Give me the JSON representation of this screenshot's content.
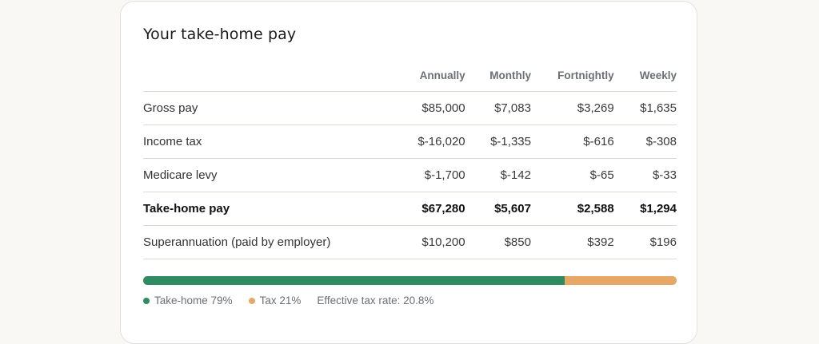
{
  "card": {
    "title": "Your take-home pay"
  },
  "table": {
    "columns": [
      "",
      "Annually",
      "Monthly",
      "Fortnightly",
      "Weekly"
    ],
    "rows": [
      {
        "label": "Gross pay",
        "values": [
          "$85,000",
          "$7,083",
          "$3,269",
          "$1,635"
        ],
        "bold": false
      },
      {
        "label": "Income tax",
        "values": [
          "$-16,020",
          "$-1,335",
          "$-616",
          "$-308"
        ],
        "bold": false
      },
      {
        "label": "Medicare levy",
        "values": [
          "$-1,700",
          "$-142",
          "$-65",
          "$-33"
        ],
        "bold": false
      },
      {
        "label": "Take-home pay",
        "values": [
          "$67,280",
          "$5,607",
          "$2,588",
          "$1,294"
        ],
        "bold": true
      },
      {
        "label": "Superannuation (paid by employer)",
        "values": [
          "$10,200",
          "$850",
          "$392",
          "$196"
        ],
        "bold": false
      }
    ]
  },
  "breakdown": {
    "takehome_fraction": 0.79,
    "takehome_color": "#2e8b62",
    "tax_color": "#e6a864",
    "legend": {
      "takehome": "Take-home 79%",
      "tax": "Tax 21%",
      "effective_rate": "Effective tax rate: 20.8%"
    }
  }
}
